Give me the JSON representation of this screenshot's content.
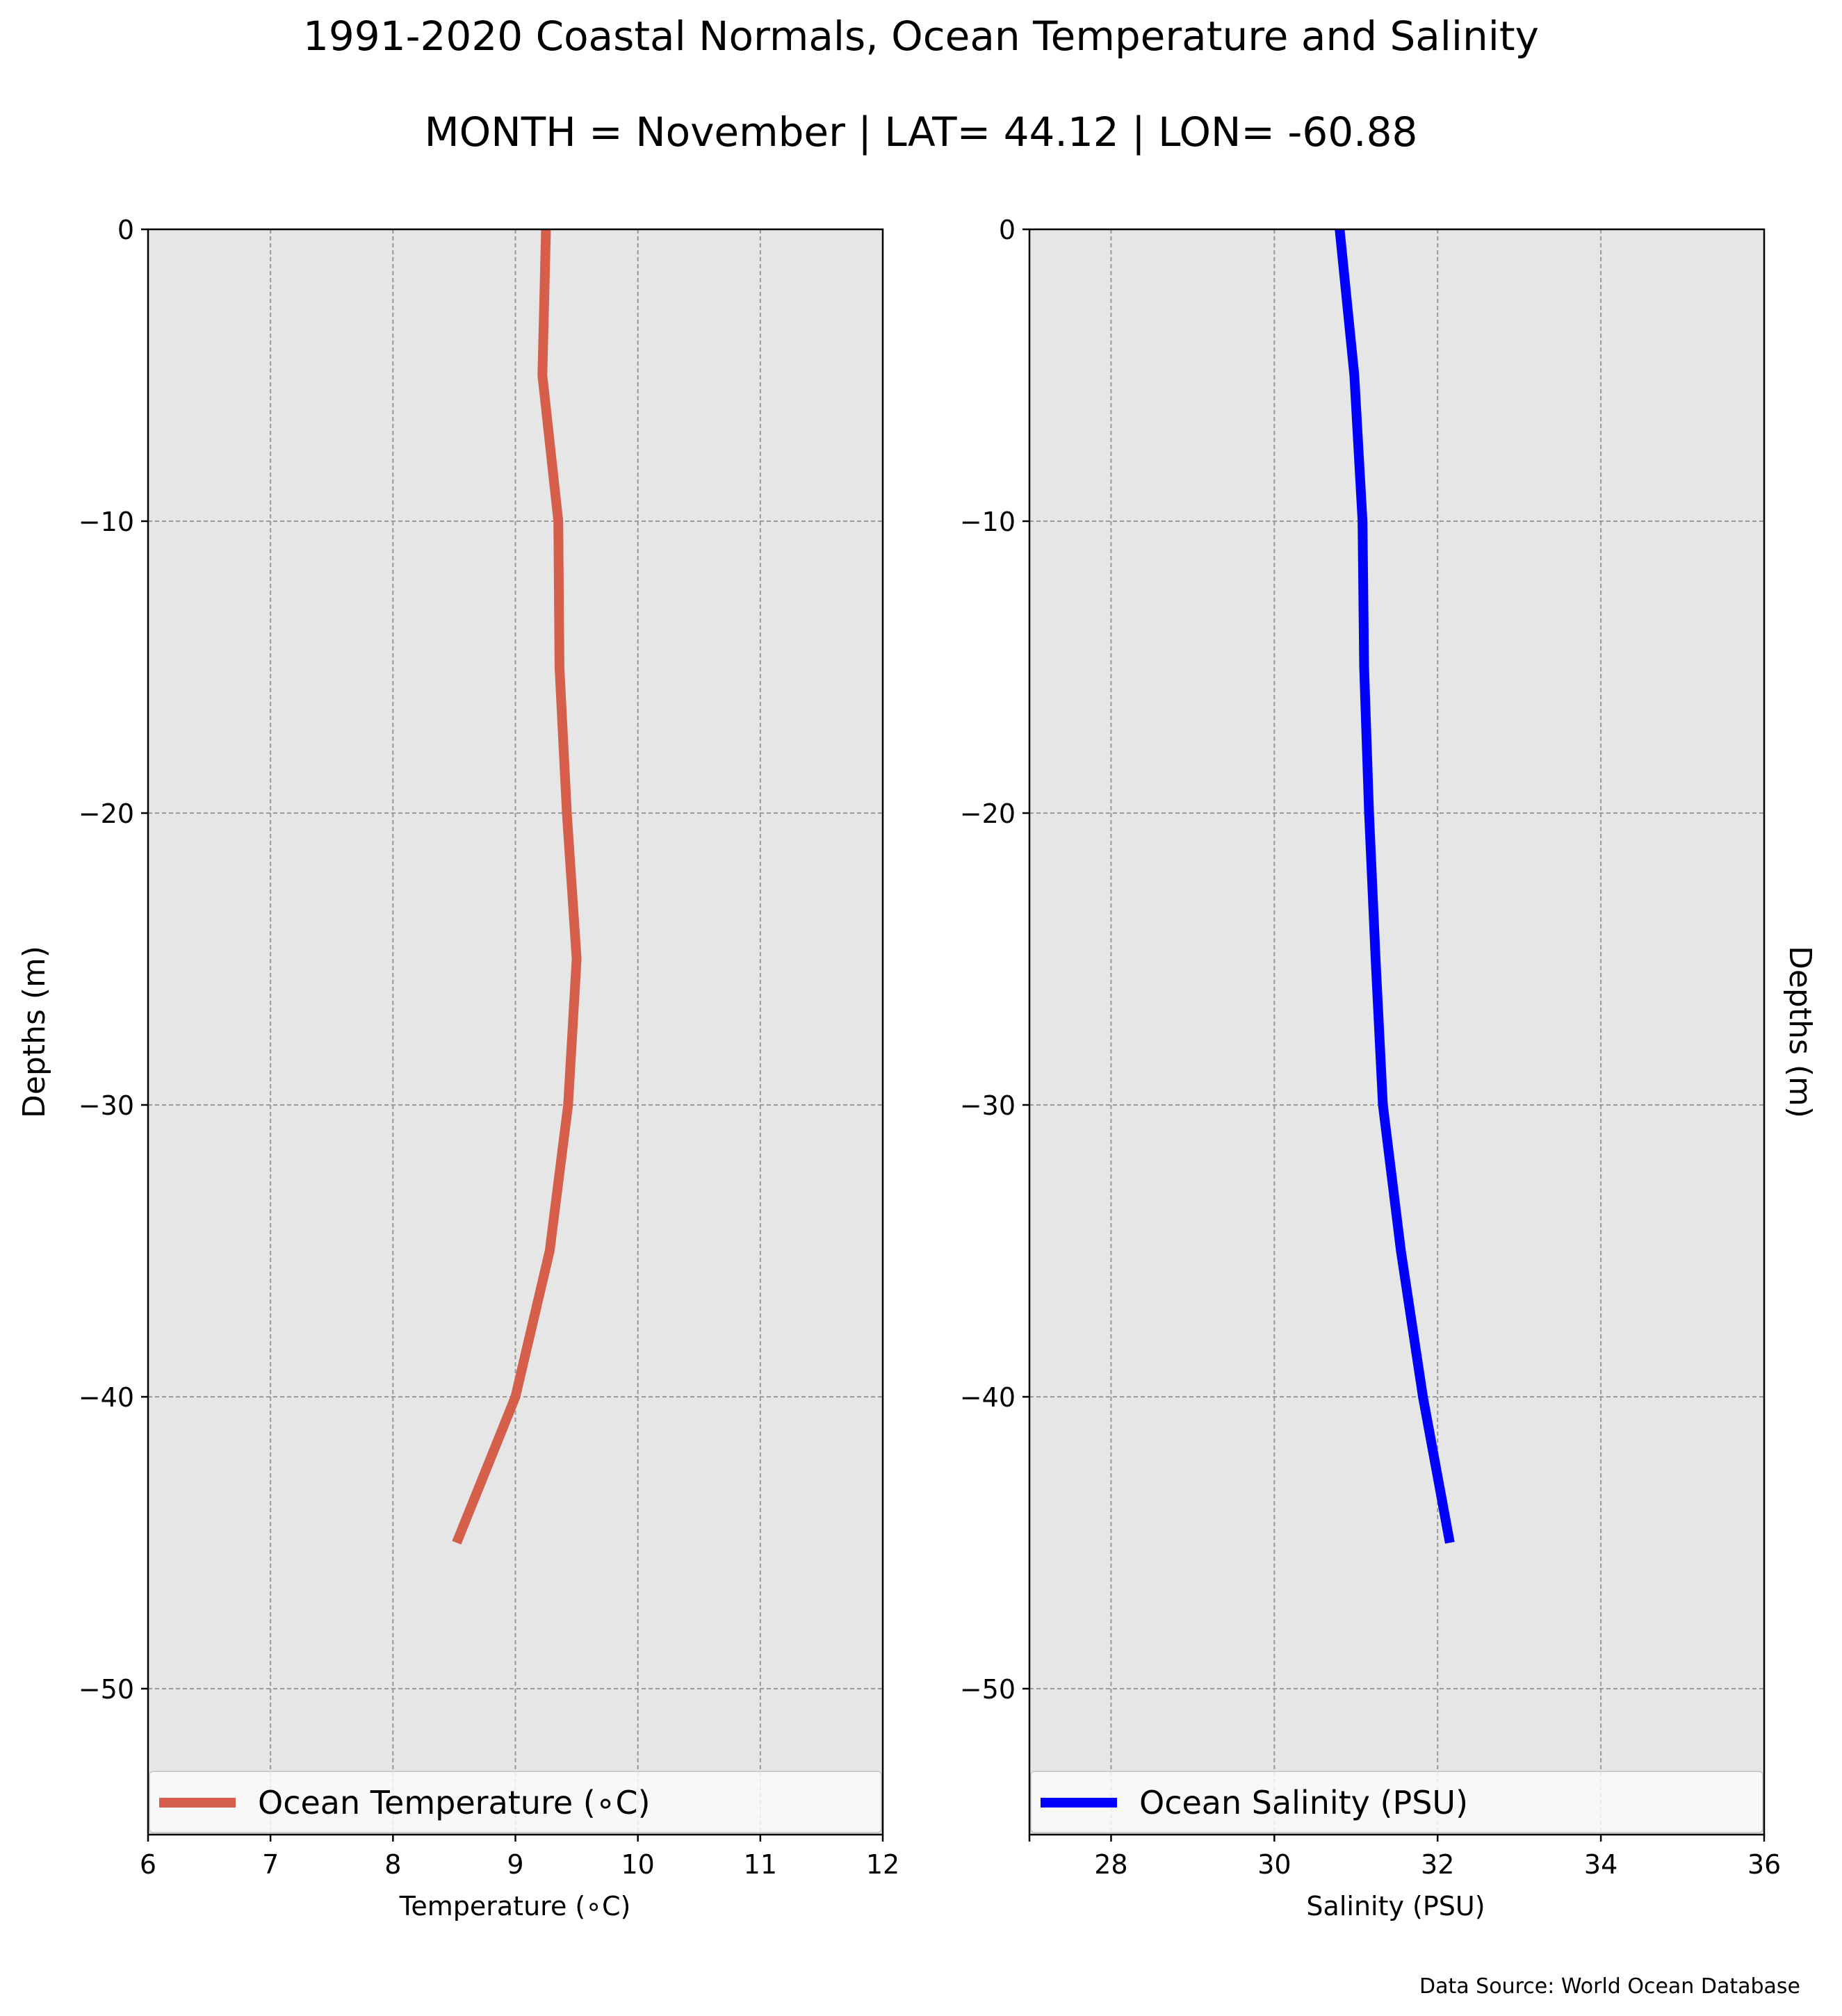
{
  "title": "1991-2020 Coastal Normals, Ocean Temperature and Salinity",
  "subtitle": "MONTH = November | LAT= 44.12 | LON= -60.88",
  "source": "Data Source: World Ocean Database",
  "chart_data": [
    {
      "type": "line",
      "xlabel": "Temperature ($^\\circ$C)",
      "xlabel_display": "Temperature (∘C)",
      "ylabel": "Depths (m)",
      "xlim": [
        6,
        12
      ],
      "ylim": [
        -55,
        0
      ],
      "xticks": [
        6,
        7,
        8,
        9,
        10,
        11,
        12
      ],
      "yticks": [
        0,
        -10,
        -20,
        -30,
        -40,
        -50
      ],
      "ytick_labels": [
        "0",
        "−10",
        "−20",
        "−30",
        "−40",
        "−50"
      ],
      "grid": true,
      "legend_position": "lower center",
      "series": [
        {
          "name": "Ocean Temperature (∘C)",
          "color": "#d65f4c",
          "x": [
            9.25,
            9.22,
            9.35,
            9.36,
            9.42,
            9.5,
            9.43,
            9.28,
            9.0,
            8.52
          ],
          "y": [
            0,
            -5,
            -10,
            -15,
            -20,
            -25,
            -30,
            -35,
            -40,
            -45
          ]
        }
      ]
    },
    {
      "type": "line",
      "xlabel": "Salinity (PSU)",
      "ylabel": "Depths (m)",
      "xlim": [
        27,
        36
      ],
      "ylim": [
        -55,
        0
      ],
      "xticks": [
        28,
        30,
        32,
        34,
        36
      ],
      "yticks": [
        0,
        -10,
        -20,
        -30,
        -40,
        -50
      ],
      "ytick_labels": [
        "0",
        "−10",
        "−20",
        "−30",
        "−40",
        "−50"
      ],
      "grid": true,
      "legend_position": "lower center",
      "series": [
        {
          "name": "Ocean Salinity (PSU)",
          "color": "#0000ff",
          "x": [
            30.8,
            30.98,
            31.08,
            31.1,
            31.16,
            31.24,
            31.33,
            31.55,
            31.82,
            32.15
          ],
          "y": [
            0,
            -5,
            -10,
            -15,
            -20,
            -25,
            -30,
            -35,
            -40,
            -45
          ]
        }
      ]
    }
  ],
  "colors": {
    "plot_background": "#e6e6e6",
    "grid": "#999999",
    "legend_background": "#fafafa"
  }
}
